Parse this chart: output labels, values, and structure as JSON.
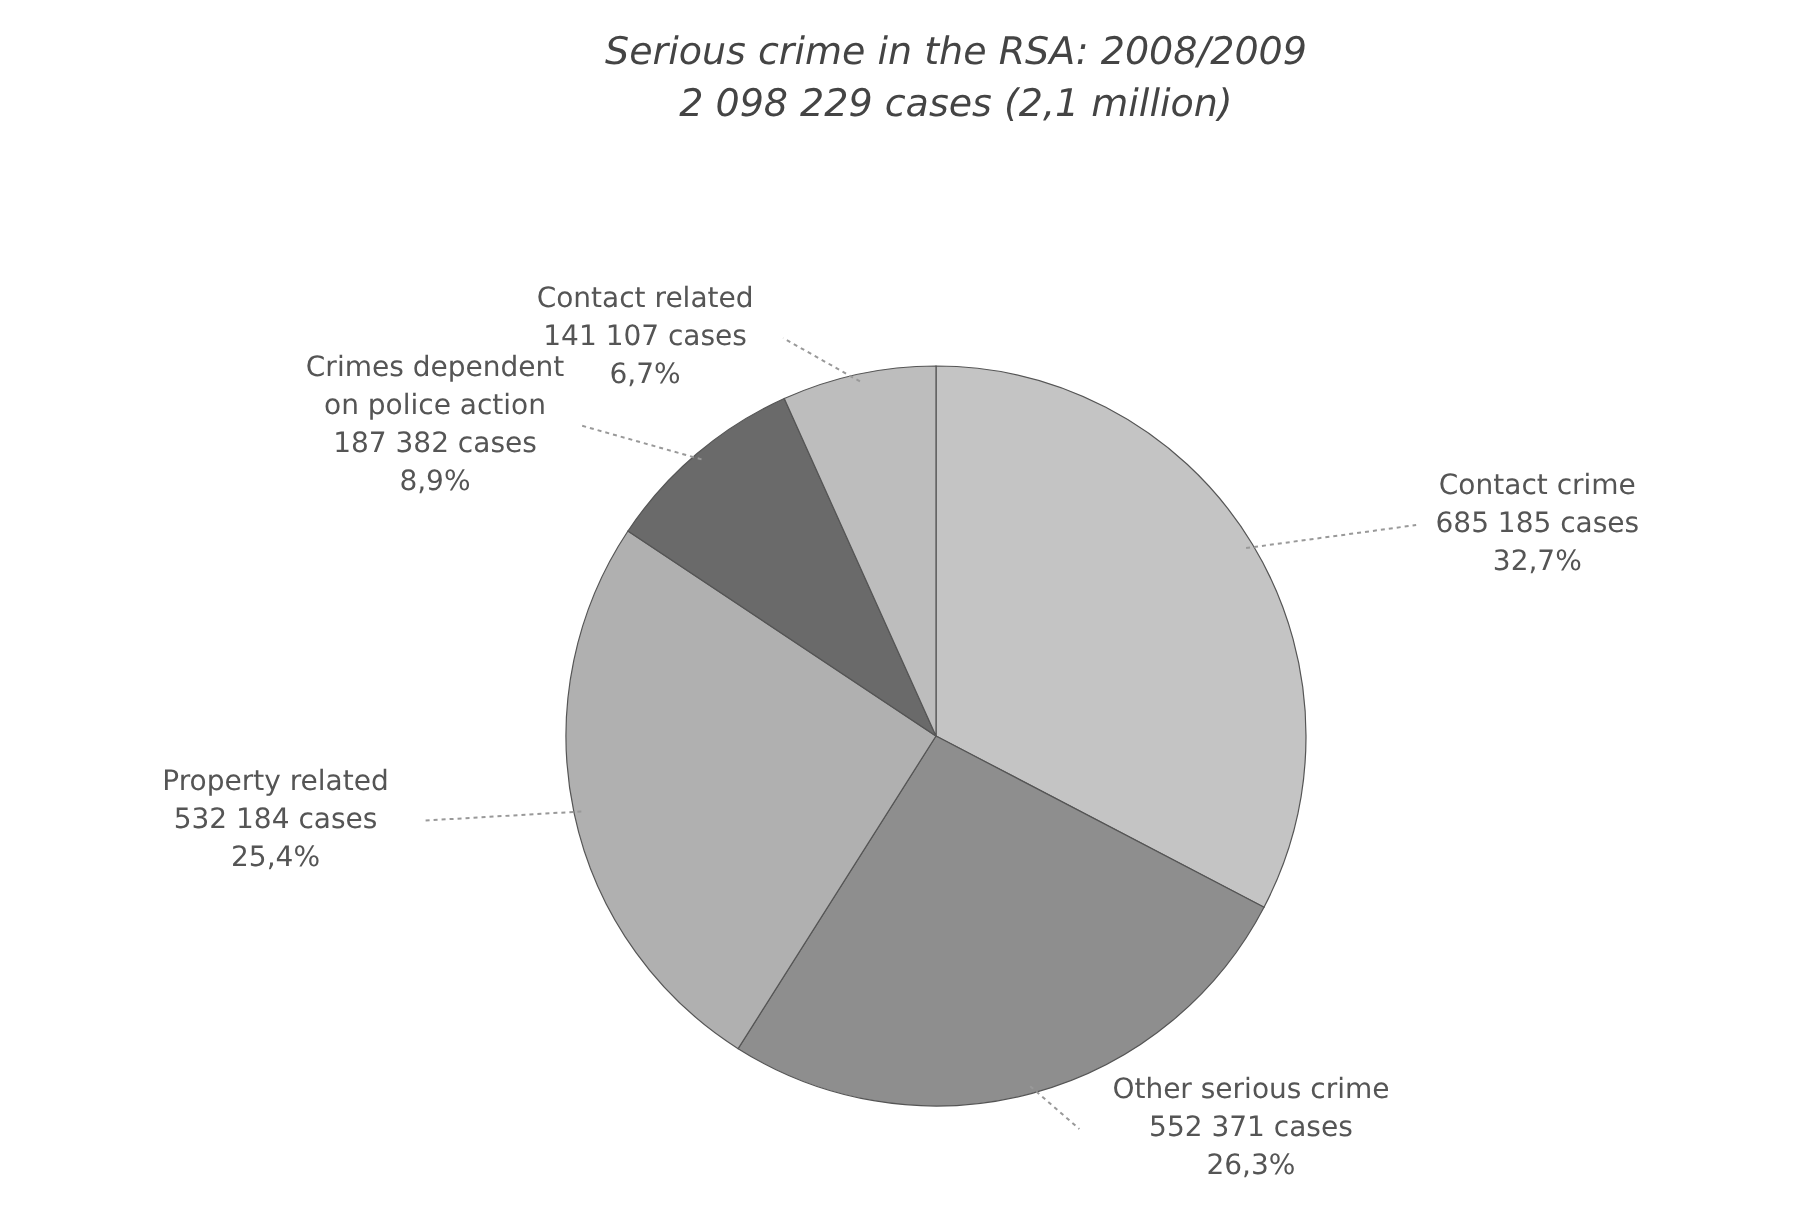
{
  "chart_data": {
    "type": "pie",
    "title": "Serious crime in the RSA: 2008/2009",
    "subtitle": "2 098 229 cases (2,1 million)",
    "categories": [
      "Contact crime",
      "Other serious crime",
      "Property related",
      "Crimes dependent on police action",
      "Contact related"
    ],
    "values": [
      685185,
      552371,
      532184,
      187382,
      141107
    ],
    "value_labels": [
      "685 185 cases\n32,7%",
      "552 371 cases\n26,3%",
      "532 184 cases\n25,4%",
      "187 382 cases\n8,9%",
      "141 107 cases\n6,7%"
    ],
    "colors": [
      "#c4c4c4",
      "#8e8e8e",
      "#b0b0b0",
      "#6a6a6a",
      "#bdbdbd"
    ]
  }
}
